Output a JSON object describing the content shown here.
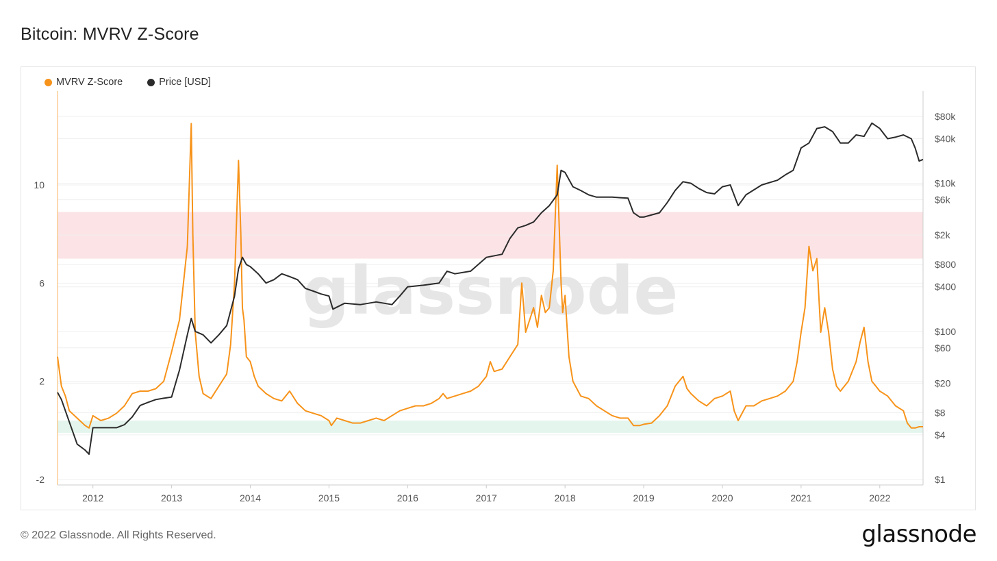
{
  "page": {
    "title": "Bitcoin: MVRV Z-Score",
    "footer": "© 2022 Glassnode. All Rights Reserved.",
    "logo": "glassnode",
    "watermark": "glassnode"
  },
  "colors": {
    "mvrv": "#f7931a",
    "price": "#2b2b2b",
    "red_band": "#fbe3e6",
    "green_band": "#e3f5ec",
    "grid": "#efefef"
  },
  "chart_data": {
    "type": "line",
    "title": "Bitcoin: MVRV Z-Score",
    "legend": {
      "placement": "top-left",
      "items": [
        "MVRV Z-Score",
        "Price [USD]"
      ]
    },
    "x_ticks": [
      "2012",
      "2013",
      "2014",
      "2015",
      "2016",
      "2017",
      "2018",
      "2019",
      "2020",
      "2021",
      "2022"
    ],
    "x_range": [
      2011.55,
      2022.55
    ],
    "left_axis": {
      "ticks": [
        10,
        6,
        2,
        -2
      ],
      "range": [
        -2,
        13
      ]
    },
    "right_axis": {
      "scale": "log",
      "ticks": [
        {
          "label": "$80k",
          "value": 80000
        },
        {
          "label": "$40k",
          "value": 40000
        },
        {
          "label": "$10k",
          "value": 10000
        },
        {
          "label": "$6k",
          "value": 6000
        },
        {
          "label": "$2k",
          "value": 2000
        },
        {
          "label": "$800",
          "value": 800
        },
        {
          "label": "$400",
          "value": 400
        },
        {
          "label": "$100",
          "value": 100
        },
        {
          "label": "$60",
          "value": 60
        },
        {
          "label": "$20",
          "value": 20
        },
        {
          "label": "$8",
          "value": 8
        },
        {
          "label": "$4",
          "value": 4
        },
        {
          "label": "$1",
          "value": 1
        }
      ]
    },
    "bands": [
      {
        "name": "red",
        "axis": "left",
        "from": 7.0,
        "to": 8.9
      },
      {
        "name": "green",
        "axis": "left",
        "from": -0.1,
        "to": 0.4
      }
    ],
    "series": [
      {
        "name": "MVRV Z-Score",
        "axis": "left",
        "x": [
          2011.55,
          2011.6,
          2011.65,
          2011.7,
          2011.8,
          2011.9,
          2011.95,
          2012.0,
          2012.1,
          2012.2,
          2012.3,
          2012.4,
          2012.5,
          2012.6,
          2012.7,
          2012.8,
          2012.9,
          2013.0,
          2013.1,
          2013.15,
          2013.2,
          2013.25,
          2013.27,
          2013.3,
          2013.35,
          2013.4,
          2013.5,
          2013.6,
          2013.7,
          2013.75,
          2013.8,
          2013.85,
          2013.88,
          2013.9,
          2013.92,
          2013.95,
          2014.0,
          2014.05,
          2014.1,
          2014.2,
          2014.3,
          2014.4,
          2014.5,
          2014.6,
          2014.7,
          2014.8,
          2014.9,
          2015.0,
          2015.03,
          2015.1,
          2015.2,
          2015.3,
          2015.4,
          2015.5,
          2015.6,
          2015.7,
          2015.8,
          2015.9,
          2016.0,
          2016.1,
          2016.2,
          2016.3,
          2016.4,
          2016.45,
          2016.5,
          2016.6,
          2016.7,
          2016.8,
          2016.9,
          2017.0,
          2017.05,
          2017.1,
          2017.2,
          2017.3,
          2017.4,
          2017.45,
          2017.5,
          2017.55,
          2017.6,
          2017.65,
          2017.7,
          2017.75,
          2017.8,
          2017.85,
          2017.9,
          2017.95,
          2017.97,
          2018.0,
          2018.05,
          2018.1,
          2018.15,
          2018.2,
          2018.3,
          2018.4,
          2018.5,
          2018.6,
          2018.7,
          2018.8,
          2018.87,
          2018.95,
          2019.0,
          2019.1,
          2019.2,
          2019.3,
          2019.4,
          2019.5,
          2019.55,
          2019.6,
          2019.7,
          2019.8,
          2019.9,
          2020.0,
          2020.1,
          2020.15,
          2020.2,
          2020.3,
          2020.4,
          2020.5,
          2020.6,
          2020.7,
          2020.8,
          2020.9,
          2020.95,
          2021.0,
          2021.05,
          2021.1,
          2021.15,
          2021.2,
          2021.25,
          2021.3,
          2021.35,
          2021.4,
          2021.45,
          2021.5,
          2021.6,
          2021.7,
          2021.75,
          2021.8,
          2021.85,
          2021.9,
          2021.95,
          2022.0,
          2022.1,
          2022.2,
          2022.3,
          2022.35,
          2022.4,
          2022.45,
          2022.5,
          2022.55
        ],
        "values": [
          3.0,
          1.8,
          1.4,
          0.8,
          0.5,
          0.2,
          0.1,
          0.6,
          0.4,
          0.5,
          0.7,
          1.0,
          1.5,
          1.6,
          1.6,
          1.7,
          2.0,
          3.2,
          4.5,
          6.0,
          7.5,
          12.5,
          8.0,
          4.0,
          2.2,
          1.5,
          1.3,
          1.8,
          2.3,
          3.5,
          6.0,
          11.0,
          8.0,
          5.0,
          4.5,
          3.0,
          2.8,
          2.2,
          1.8,
          1.5,
          1.3,
          1.2,
          1.6,
          1.1,
          0.8,
          0.7,
          0.6,
          0.4,
          0.2,
          0.5,
          0.4,
          0.3,
          0.3,
          0.4,
          0.5,
          0.4,
          0.6,
          0.8,
          0.9,
          1.0,
          1.0,
          1.1,
          1.3,
          1.5,
          1.3,
          1.4,
          1.5,
          1.6,
          1.8,
          2.2,
          2.8,
          2.4,
          2.5,
          3.0,
          3.5,
          6.0,
          4.0,
          4.5,
          5.0,
          4.2,
          5.5,
          4.8,
          5.0,
          6.5,
          10.8,
          6.0,
          4.8,
          5.5,
          3.0,
          2.0,
          1.7,
          1.4,
          1.3,
          1.0,
          0.8,
          0.6,
          0.5,
          0.5,
          0.2,
          0.2,
          0.25,
          0.3,
          0.6,
          1.0,
          1.8,
          2.2,
          1.7,
          1.5,
          1.2,
          1.0,
          1.3,
          1.4,
          1.6,
          0.8,
          0.4,
          1.0,
          1.0,
          1.2,
          1.3,
          1.4,
          1.6,
          2.0,
          2.8,
          4.0,
          5.0,
          7.5,
          6.5,
          7.0,
          4.0,
          5.0,
          4.0,
          2.5,
          1.8,
          1.6,
          2.0,
          2.8,
          3.6,
          4.2,
          2.8,
          2.0,
          1.8,
          1.6,
          1.4,
          1.0,
          0.8,
          0.3,
          0.1,
          0.1,
          0.15,
          0.15
        ]
      },
      {
        "name": "Price [USD]",
        "axis": "right",
        "x": [
          2011.55,
          2011.6,
          2011.7,
          2011.8,
          2011.9,
          2011.95,
          2012.0,
          2012.1,
          2012.2,
          2012.3,
          2012.4,
          2012.5,
          2012.6,
          2012.7,
          2012.8,
          2012.9,
          2013.0,
          2013.1,
          2013.2,
          2013.25,
          2013.3,
          2013.4,
          2013.5,
          2013.6,
          2013.7,
          2013.8,
          2013.85,
          2013.9,
          2013.95,
          2014.0,
          2014.1,
          2014.2,
          2014.3,
          2014.4,
          2014.5,
          2014.6,
          2014.7,
          2014.8,
          2014.9,
          2015.0,
          2015.05,
          2015.2,
          2015.4,
          2015.6,
          2015.7,
          2015.8,
          2015.9,
          2016.0,
          2016.2,
          2016.4,
          2016.5,
          2016.6,
          2016.8,
          2017.0,
          2017.2,
          2017.3,
          2017.4,
          2017.5,
          2017.6,
          2017.7,
          2017.8,
          2017.9,
          2017.95,
          2018.0,
          2018.1,
          2018.2,
          2018.3,
          2018.4,
          2018.5,
          2018.6,
          2018.7,
          2018.8,
          2018.87,
          2018.95,
          2019.0,
          2019.2,
          2019.3,
          2019.4,
          2019.5,
          2019.6,
          2019.7,
          2019.8,
          2019.9,
          2020.0,
          2020.1,
          2020.2,
          2020.3,
          2020.5,
          2020.7,
          2020.8,
          2020.9,
          2021.0,
          2021.1,
          2021.2,
          2021.3,
          2021.4,
          2021.5,
          2021.6,
          2021.7,
          2021.8,
          2021.9,
          2022.0,
          2022.1,
          2022.2,
          2022.3,
          2022.4,
          2022.45,
          2022.5,
          2022.55
        ],
        "values": [
          15,
          12,
          6,
          3,
          2.5,
          2.2,
          5,
          5,
          5,
          5,
          5.5,
          7,
          10,
          11,
          12,
          12.5,
          13,
          30,
          90,
          150,
          100,
          90,
          70,
          90,
          120,
          300,
          700,
          1000,
          800,
          750,
          600,
          450,
          500,
          600,
          550,
          500,
          380,
          350,
          320,
          300,
          200,
          240,
          230,
          250,
          240,
          230,
          300,
          400,
          420,
          450,
          650,
          600,
          650,
          1000,
          1100,
          1800,
          2500,
          2700,
          3000,
          4000,
          5000,
          7000,
          15000,
          14000,
          9000,
          8000,
          7000,
          6500,
          6500,
          6500,
          6400,
          6300,
          4000,
          3500,
          3500,
          4000,
          5500,
          8000,
          10500,
          10000,
          8500,
          7500,
          7200,
          9000,
          9500,
          5000,
          7000,
          9500,
          11000,
          13000,
          15000,
          30000,
          35000,
          55000,
          58000,
          50000,
          35000,
          35000,
          45000,
          43000,
          65000,
          55000,
          40000,
          42000,
          45000,
          40000,
          30000,
          20000,
          21000
        ]
      }
    ]
  }
}
